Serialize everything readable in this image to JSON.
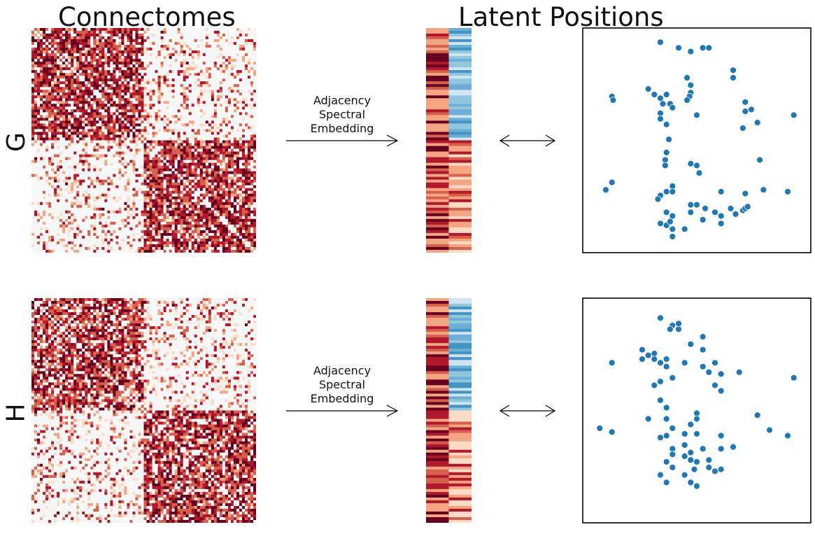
{
  "titles": {
    "connectomes": "Connectomes",
    "latent": "Latent Positions"
  },
  "rows": [
    {
      "label": "G",
      "arrow_label": [
        "Adjacency",
        "Spectral",
        "Embedding"
      ]
    },
    {
      "label": "H",
      "arrow_label": [
        "Adjacency",
        "Spectral",
        "Embedding"
      ]
    }
  ],
  "colors": {
    "heatmap_dark_red": "#67001f",
    "heatmap_red": "#b2182b",
    "heatmap_light": "#fddbc7",
    "heatmap_white": "#f7f7f7",
    "embedding_blue": "#6baed6",
    "scatter_point": "#1f77b4"
  },
  "scatter": {
    "G": [
      [
        -0.2,
        0.95
      ],
      [
        -0.05,
        0.92
      ],
      [
        0.05,
        0.9
      ],
      [
        0.15,
        0.92
      ],
      [
        0.2,
        0.92
      ],
      [
        0.4,
        0.8
      ],
      [
        0.4,
        0.76
      ],
      [
        0.02,
        0.76
      ],
      [
        0.05,
        0.72
      ],
      [
        0.05,
        0.68
      ],
      [
        0.04,
        0.66
      ],
      [
        -0.6,
        0.66
      ],
      [
        -0.59,
        0.64
      ],
      [
        -0.3,
        0.7
      ],
      [
        -0.25,
        0.67
      ],
      [
        -0.2,
        0.65
      ],
      [
        -0.12,
        0.62
      ],
      [
        -0.15,
        0.67
      ],
      [
        -0.18,
        0.62
      ],
      [
        -0.1,
        0.6
      ],
      [
        0.02,
        0.64
      ],
      [
        -0.2,
        0.57
      ],
      [
        -0.2,
        0.54
      ],
      [
        0.1,
        0.56
      ],
      [
        0.5,
        0.63
      ],
      [
        0.55,
        0.59
      ],
      [
        0.5,
        0.58
      ],
      [
        0.6,
        0.52
      ],
      [
        0.9,
        0.56
      ],
      [
        0.48,
        0.49
      ],
      [
        -0.15,
        0.51
      ],
      [
        -0.13,
        0.43
      ],
      [
        -0.15,
        0.36
      ],
      [
        -0.16,
        0.32
      ],
      [
        0.05,
        0.3
      ],
      [
        0.1,
        0.29
      ],
      [
        0.12,
        0.25
      ],
      [
        -0.16,
        0.29
      ],
      [
        0.62,
        0.32
      ],
      [
        -0.6,
        0.2
      ],
      [
        -0.1,
        0.18
      ],
      [
        -0.15,
        0.15
      ],
      [
        -0.1,
        0.15
      ],
      [
        -0.65,
        0.16
      ],
      [
        0.3,
        0.15
      ],
      [
        0.5,
        0.14
      ],
      [
        0.65,
        0.16
      ],
      [
        0.85,
        0.15
      ],
      [
        -0.2,
        0.13
      ],
      [
        -0.22,
        0.11
      ],
      [
        0.05,
        0.08
      ],
      [
        0.1,
        0.08
      ],
      [
        0.17,
        0.06
      ],
      [
        0.38,
        0.06
      ],
      [
        0.42,
        0.03
      ],
      [
        0.48,
        0.05
      ],
      [
        0.5,
        0.06
      ],
      [
        0.52,
        0.07
      ],
      [
        -0.15,
        0.04
      ],
      [
        0.05,
        0.04
      ],
      [
        0.25,
        0.04
      ],
      [
        0.3,
        0.02
      ],
      [
        0.15,
        0.0
      ],
      [
        -0.1,
        0.02
      ],
      [
        -0.2,
        -0.02
      ],
      [
        -0.15,
        -0.03
      ],
      [
        -0.12,
        -0.01
      ],
      [
        0.3,
        -0.02
      ],
      [
        -0.1,
        -0.05
      ],
      [
        0.0,
        -0.05
      ],
      [
        -0.1,
        -0.09
      ]
    ],
    "H": [
      [
        -0.2,
        0.92
      ],
      [
        -0.1,
        0.88
      ],
      [
        -0.05,
        0.86
      ],
      [
        -0.12,
        0.86
      ],
      [
        -0.05,
        0.89
      ],
      [
        0.15,
        0.82
      ],
      [
        0.05,
        0.78
      ],
      [
        0.15,
        0.75
      ],
      [
        -0.35,
        0.75
      ],
      [
        -0.3,
        0.72
      ],
      [
        -0.35,
        0.7
      ],
      [
        -0.3,
        0.72
      ],
      [
        -0.25,
        0.73
      ],
      [
        -0.15,
        0.7
      ],
      [
        -0.2,
        0.68
      ],
      [
        -0.25,
        0.7
      ],
      [
        -0.15,
        0.66
      ],
      [
        -0.6,
        0.68
      ],
      [
        0.0,
        0.68
      ],
      [
        0.15,
        0.66
      ],
      [
        0.25,
        0.68
      ],
      [
        0.2,
        0.63
      ],
      [
        0.3,
        0.62
      ],
      [
        0.45,
        0.63
      ],
      [
        0.9,
        0.6
      ],
      [
        -0.1,
        0.6
      ],
      [
        -0.25,
        0.56
      ],
      [
        -0.2,
        0.58
      ],
      [
        0.25,
        0.56
      ],
      [
        0.3,
        0.53
      ],
      [
        -0.2,
        0.48
      ],
      [
        -0.15,
        0.44
      ],
      [
        0.1,
        0.41
      ],
      [
        0.1,
        0.38
      ],
      [
        0.6,
        0.4
      ],
      [
        -0.3,
        0.38
      ],
      [
        -0.15,
        0.38
      ],
      [
        0.05,
        0.35
      ],
      [
        -0.7,
        0.33
      ],
      [
        -0.6,
        0.31
      ],
      [
        -0.1,
        0.33
      ],
      [
        0.0,
        0.3
      ],
      [
        -0.15,
        0.29
      ],
      [
        0.1,
        0.3
      ],
      [
        0.7,
        0.32
      ],
      [
        0.85,
        0.29
      ],
      [
        0.3,
        0.29
      ],
      [
        -0.2,
        0.28
      ],
      [
        0.0,
        0.24
      ],
      [
        -0.1,
        0.22
      ],
      [
        0.05,
        0.2
      ],
      [
        0.15,
        0.22
      ],
      [
        0.3,
        0.22
      ],
      [
        0.4,
        0.23
      ],
      [
        -0.1,
        0.19
      ],
      [
        0.05,
        0.16
      ],
      [
        -0.15,
        0.15
      ],
      [
        0.1,
        0.15
      ],
      [
        0.2,
        0.16
      ],
      [
        0.0,
        0.18
      ],
      [
        -0.1,
        0.12
      ],
      [
        0.08,
        0.11
      ],
      [
        0.2,
        0.12
      ],
      [
        0.25,
        0.1
      ],
      [
        0.3,
        0.11
      ],
      [
        -0.2,
        0.08
      ],
      [
        0.0,
        0.08
      ],
      [
        -0.15,
        0.04
      ],
      [
        0.05,
        0.04
      ],
      [
        0.1,
        0.02
      ]
    ]
  }
}
